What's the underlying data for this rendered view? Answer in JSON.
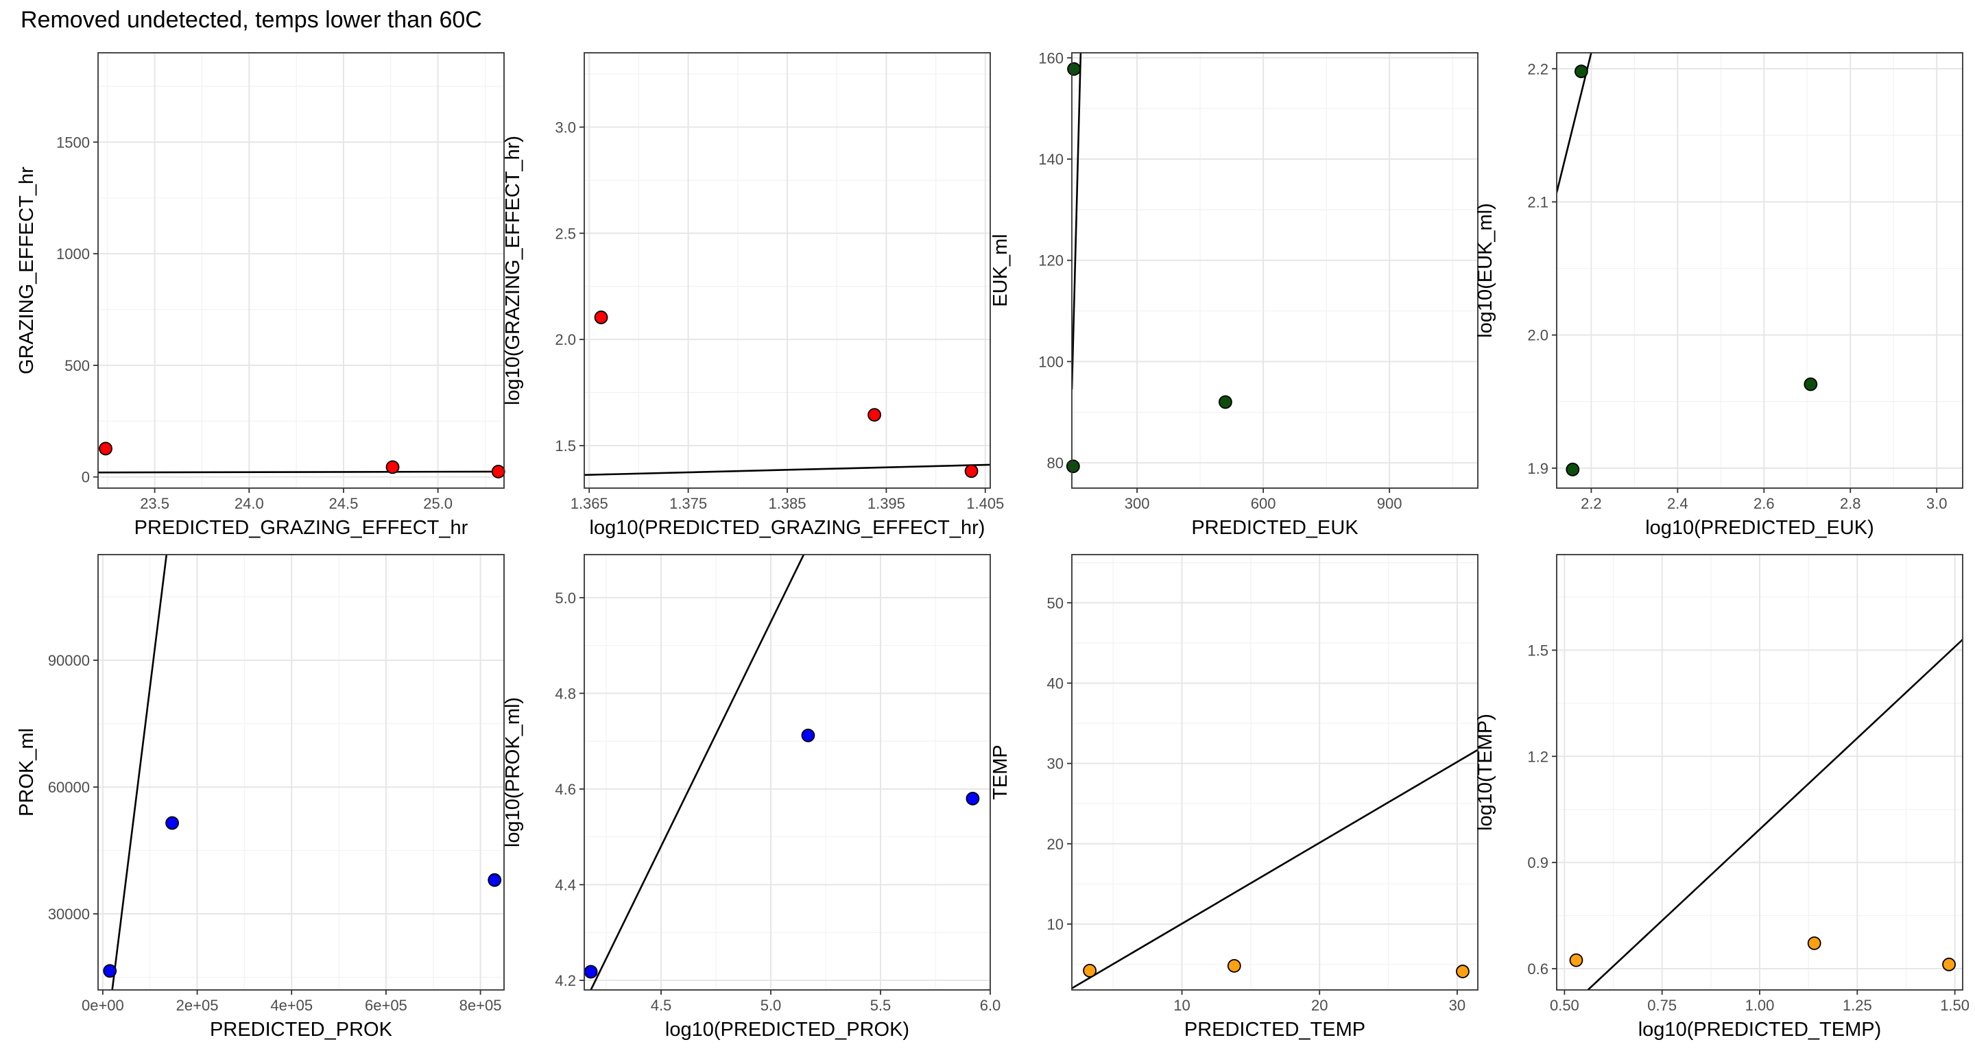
{
  "figure": {
    "title": "Removed undetected, temps lower than 60C"
  },
  "colors": {
    "grazing": "#ff0000",
    "euk": "#0b4e0b",
    "prok": "#0000ff",
    "temp": "#ffa010",
    "line": "#000000",
    "grid": "#ebebeb",
    "panel_border": "#333333"
  },
  "chart_data": [
    {
      "type": "scatter",
      "xlabel": "PREDICTED_GRAZING_EFFECT_hr",
      "ylabel": "GRAZING_EFFECT_hr",
      "xlim": [
        23.2,
        25.35
      ],
      "ylim": [
        -50,
        1900
      ],
      "x_ticks": [
        23.5,
        24.0,
        24.5,
        25.0
      ],
      "x_tick_labels": [
        "23.5",
        "24.0",
        "24.5",
        "25.0"
      ],
      "y_ticks": [
        0,
        500,
        1000,
        1500
      ],
      "y_tick_labels": [
        "0",
        "500",
        "1000",
        "1500"
      ],
      "points": [
        {
          "x": 23.24,
          "y": 127
        },
        {
          "x": 24.76,
          "y": 44
        },
        {
          "x": 25.32,
          "y": 24
        }
      ],
      "fit_line": {
        "x1": 23.2,
        "y1": 20,
        "x2": 25.35,
        "y2": 24
      },
      "color": "#ff0000"
    },
    {
      "type": "scatter",
      "xlabel": "log10(PREDICTED_GRAZING_EFFECT_hr)",
      "ylabel": "log10(GRAZING_EFFECT_hr)",
      "xlim": [
        1.3645,
        1.4055
      ],
      "ylim": [
        1.3,
        3.35
      ],
      "x_ticks": [
        1.365,
        1.375,
        1.385,
        1.395,
        1.405
      ],
      "x_tick_labels": [
        "1.365",
        "1.375",
        "1.385",
        "1.395",
        "1.405"
      ],
      "y_ticks": [
        1.5,
        2.0,
        2.5,
        3.0
      ],
      "y_tick_labels": [
        "1.5",
        "2.0",
        "2.5",
        "3.0"
      ],
      "points": [
        {
          "x": 1.3662,
          "y": 2.104
        },
        {
          "x": 1.3938,
          "y": 1.645
        },
        {
          "x": 1.4036,
          "y": 1.38
        }
      ],
      "fit_line": {
        "x1": 1.3645,
        "y1": 1.362,
        "x2": 1.4055,
        "y2": 1.41
      },
      "color": "#ff0000"
    },
    {
      "type": "scatter",
      "xlabel": "PREDICTED_EUK",
      "ylabel": "EUK_ml",
      "xlim": [
        145,
        1110
      ],
      "ylim": [
        75,
        161
      ],
      "x_ticks": [
        300,
        600,
        900
      ],
      "x_tick_labels": [
        "300",
        "600",
        "900"
      ],
      "y_ticks": [
        80,
        100,
        120,
        140,
        160
      ],
      "y_tick_labels": [
        "80",
        "100",
        "120",
        "140",
        "160"
      ],
      "points": [
        {
          "x": 150,
          "y": 157.8
        },
        {
          "x": 148,
          "y": 79.3
        },
        {
          "x": 510,
          "y": 92
        }
      ],
      "fit_line": {
        "x1": 145,
        "y1": 94.5,
        "x2": 166,
        "y2": 161
      },
      "color": "#0b4e0b"
    },
    {
      "type": "scatter",
      "xlabel": "log10(PREDICTED_EUK)",
      "ylabel": "log10(EUK_ml)",
      "xlim": [
        2.12,
        3.06
      ],
      "ylim": [
        1.885,
        2.212
      ],
      "x_ticks": [
        2.2,
        2.4,
        2.6,
        2.8,
        3.0
      ],
      "x_tick_labels": [
        "2.2",
        "2.4",
        "2.6",
        "2.8",
        "3.0"
      ],
      "y_ticks": [
        1.9,
        2.0,
        2.1,
        2.2
      ],
      "y_tick_labels": [
        "1.9",
        "2.0",
        "2.1",
        "2.2"
      ],
      "points": [
        {
          "x": 2.177,
          "y": 2.198
        },
        {
          "x": 2.157,
          "y": 1.899
        },
        {
          "x": 2.708,
          "y": 1.963
        }
      ],
      "fit_line": {
        "x1": 2.12,
        "y1": 2.107,
        "x2": 2.2,
        "y2": 2.212
      },
      "color": "#0b4e0b"
    },
    {
      "type": "scatter",
      "xlabel": "PREDICTED_PROK",
      "ylabel": "PROK_ml",
      "xlim": [
        -10000,
        850000
      ],
      "ylim": [
        12000,
        115000
      ],
      "x_ticks": [
        0,
        200000,
        400000,
        600000,
        800000
      ],
      "x_tick_labels": [
        "0e+00",
        "2e+05",
        "4e+05",
        "6e+05",
        "8e+05"
      ],
      "y_ticks": [
        30000,
        60000,
        90000
      ],
      "y_tick_labels": [
        "30000",
        "60000",
        "90000"
      ],
      "points": [
        {
          "x": 15000,
          "y": 16500
        },
        {
          "x": 147000,
          "y": 51500
        },
        {
          "x": 830000,
          "y": 38000
        }
      ],
      "fit_line": {
        "x1": 20000,
        "y1": 12000,
        "x2": 135000,
        "y2": 115000
      },
      "color": "#0000ff"
    },
    {
      "type": "scatter",
      "xlabel": "log10(PREDICTED_PROK)",
      "ylabel": "log10(PROK_ml)",
      "xlim": [
        4.15,
        6.0
      ],
      "ylim": [
        4.18,
        5.09
      ],
      "x_ticks": [
        4.5,
        5.0,
        5.5,
        6.0
      ],
      "x_tick_labels": [
        "4.5",
        "5.0",
        "5.5",
        "6.0"
      ],
      "y_ticks": [
        4.2,
        4.4,
        4.6,
        4.8,
        5.0
      ],
      "y_tick_labels": [
        "4.2",
        "4.4",
        "4.6",
        "4.8",
        "5.0"
      ],
      "points": [
        {
          "x": 4.18,
          "y": 4.218
        },
        {
          "x": 5.17,
          "y": 4.712
        },
        {
          "x": 5.92,
          "y": 4.58
        }
      ],
      "fit_line": {
        "x1": 4.18,
        "y1": 4.18,
        "x2": 5.15,
        "y2": 5.09
      },
      "color": "#0000ff"
    },
    {
      "type": "scatter",
      "xlabel": "PREDICTED_TEMP",
      "ylabel": "TEMP",
      "xlim": [
        2.0,
        31.5
      ],
      "ylim": [
        1.8,
        56
      ],
      "x_ticks": [
        10,
        20,
        30
      ],
      "x_tick_labels": [
        "10",
        "20",
        "30"
      ],
      "y_ticks": [
        10,
        20,
        30,
        40,
        50
      ],
      "y_tick_labels": [
        "10",
        "20",
        "30",
        "40",
        "50"
      ],
      "points": [
        {
          "x": 3.3,
          "y": 4.2
        },
        {
          "x": 13.8,
          "y": 4.8
        },
        {
          "x": 30.4,
          "y": 4.1
        }
      ],
      "fit_line": {
        "x1": 2.0,
        "y1": 2.0,
        "x2": 31.5,
        "y2": 31.7
      },
      "color": "#ffa010"
    },
    {
      "type": "scatter",
      "xlabel": "log10(PREDICTED_TEMP)",
      "ylabel": "log10(TEMP)",
      "xlim": [
        0.48,
        1.52
      ],
      "ylim": [
        0.54,
        1.77
      ],
      "x_ticks": [
        0.5,
        0.75,
        1.0,
        1.25,
        1.5
      ],
      "x_tick_labels": [
        "0.50",
        "0.75",
        "1.00",
        "1.25",
        "1.50"
      ],
      "y_ticks": [
        0.6,
        0.9,
        1.2,
        1.5
      ],
      "y_tick_labels": [
        "0.6",
        "0.9",
        "1.2",
        "1.5"
      ],
      "points": [
        {
          "x": 0.53,
          "y": 0.624
        },
        {
          "x": 1.14,
          "y": 0.672
        },
        {
          "x": 1.485,
          "y": 0.612
        }
      ],
      "fit_line": {
        "x1": 0.56,
        "y1": 0.54,
        "x2": 1.52,
        "y2": 1.53
      },
      "color": "#ffa010"
    }
  ]
}
